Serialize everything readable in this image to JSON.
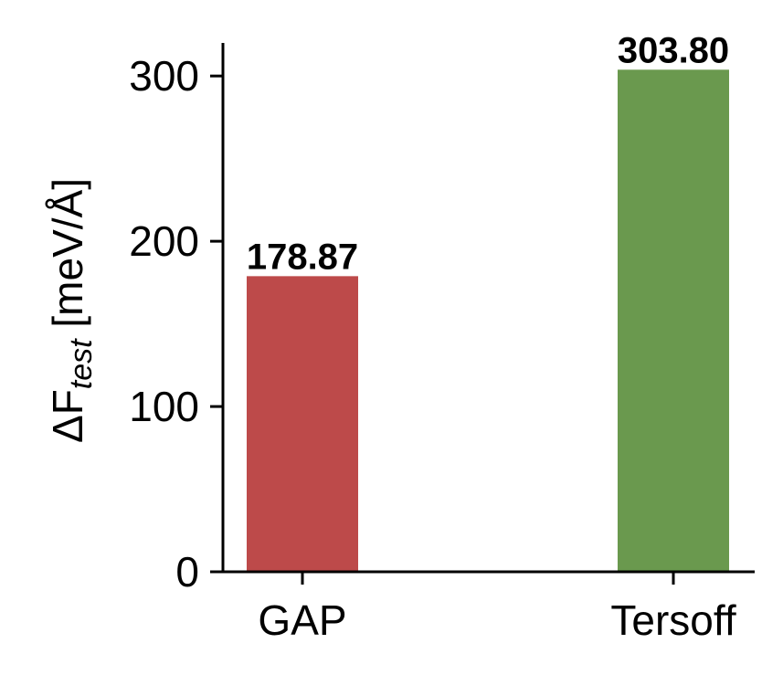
{
  "chart_data": {
    "type": "bar",
    "categories": [
      "GAP",
      "Tersoff"
    ],
    "values": [
      178.87,
      303.8
    ],
    "value_labels": [
      "178.87",
      "303.80"
    ],
    "colors": [
      "#bd4a4a",
      "#6a994e"
    ],
    "title": "",
    "xlabel": "",
    "ylabel": {
      "prefix": "ΔF",
      "subscript": "test",
      "suffix": " [meV/Å]"
    },
    "ylim": [
      0,
      320
    ],
    "yticks": [
      0,
      100,
      200,
      300
    ],
    "ytick_labels": [
      "0",
      "100",
      "200",
      "300"
    ],
    "grid": false,
    "legend": "none"
  }
}
